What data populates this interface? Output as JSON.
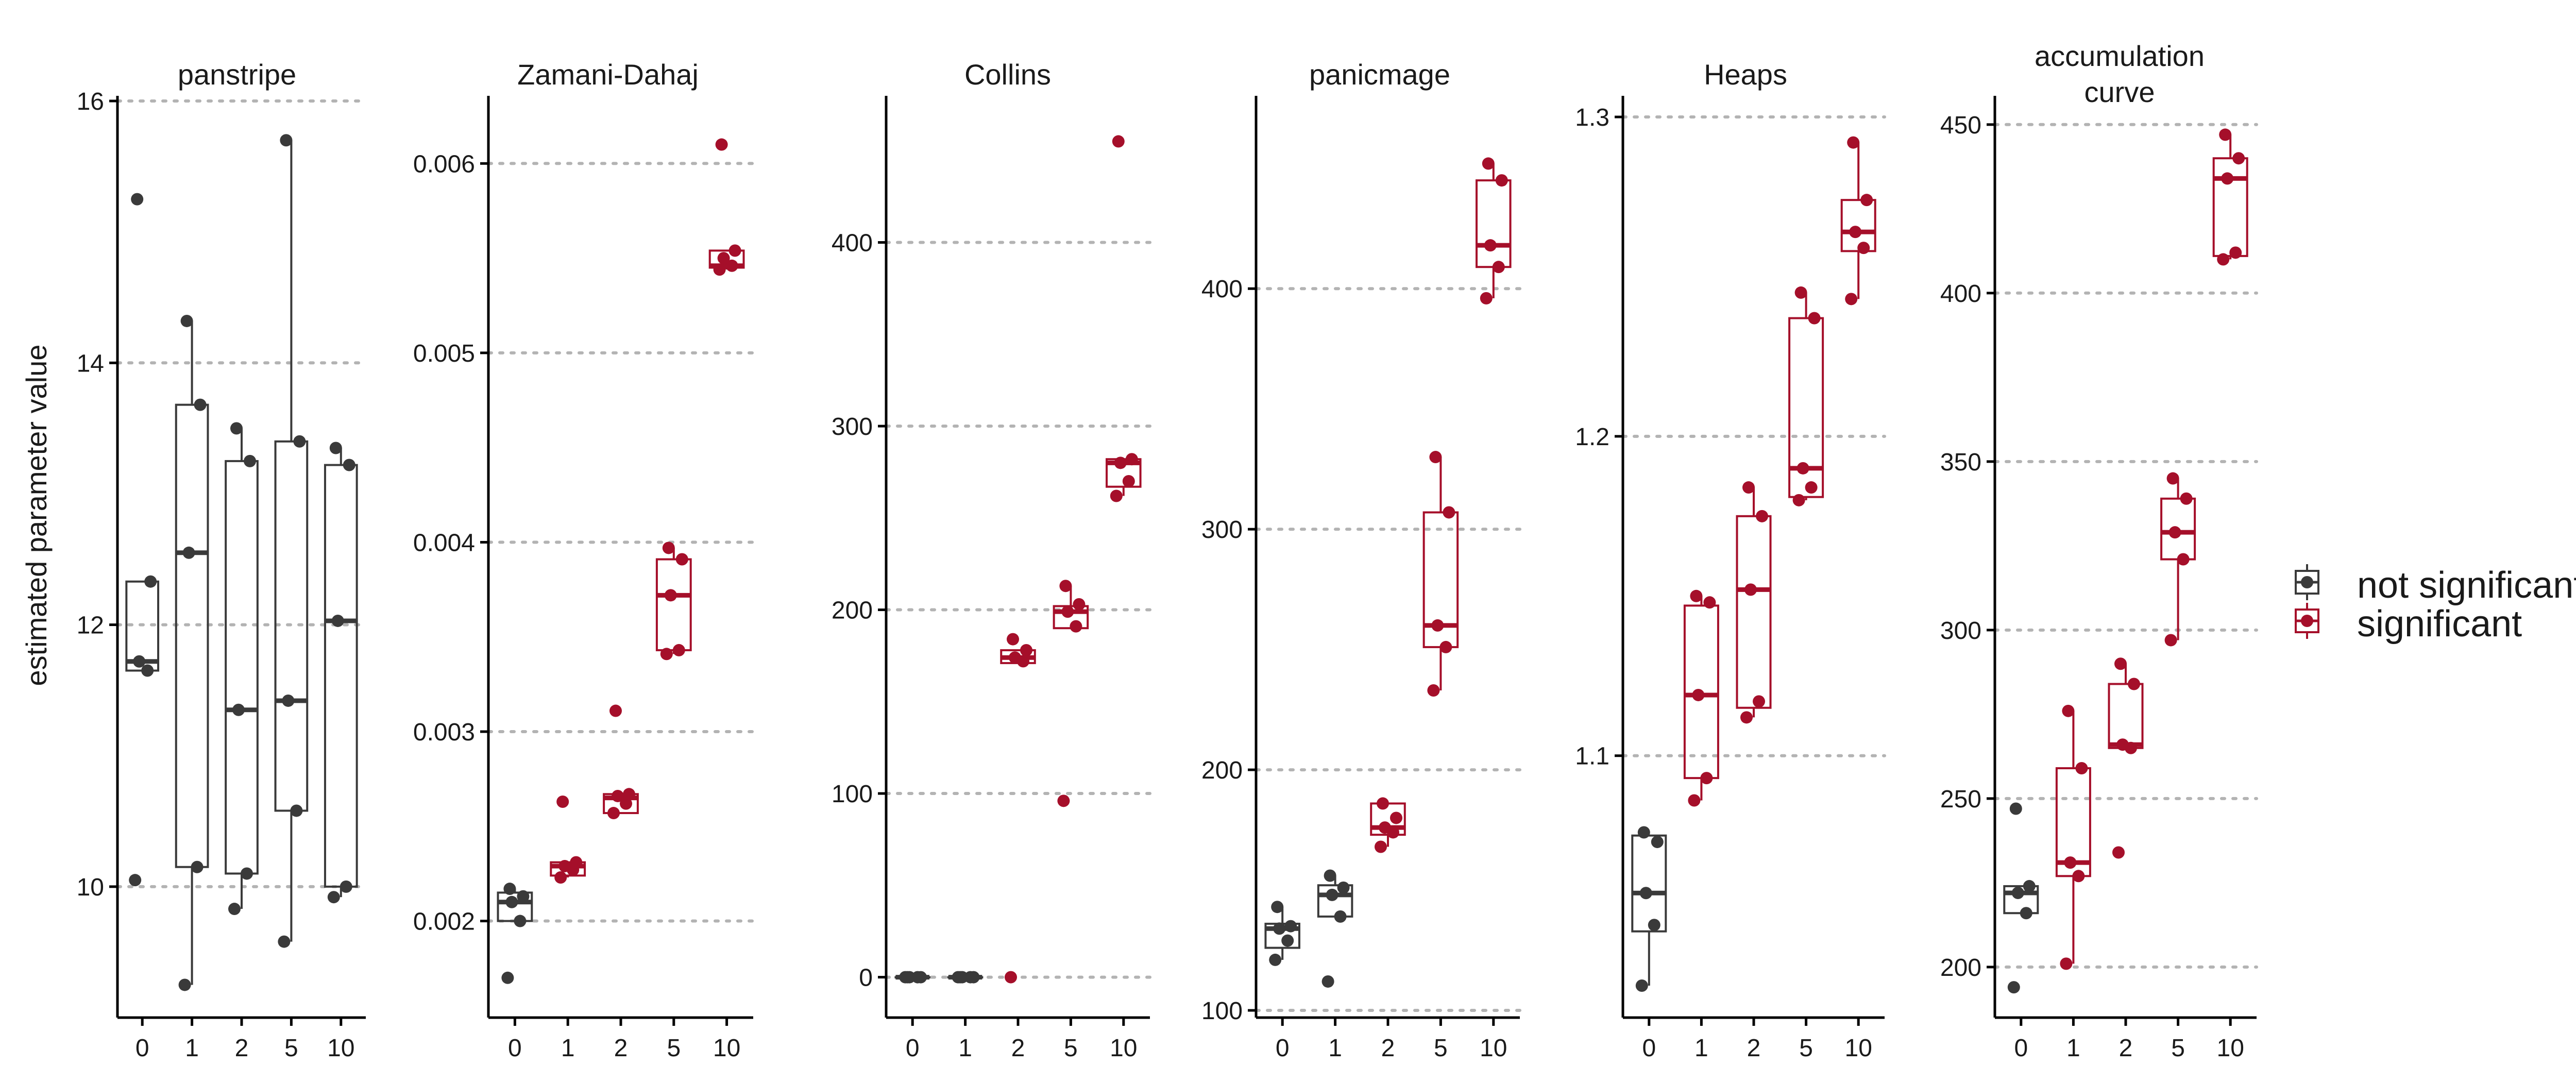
{
  "ylabel": "estimated parameter value",
  "legend": {
    "items": [
      {
        "label": "not significant",
        "color": "#3a3a3a"
      },
      {
        "label": "significant",
        "color": "#a50f2a"
      }
    ]
  },
  "chart_data": [
    {
      "type": "box",
      "title": [
        "panstripe"
      ],
      "categories": [
        "0",
        "1",
        "2",
        "5",
        "10"
      ],
      "ylim": [
        9,
        16
      ],
      "yticks": [
        10,
        12,
        14,
        16
      ],
      "ytick_labels": [
        "10",
        "12",
        "14",
        "16"
      ],
      "groups": [
        {
          "significant": false,
          "points": [
            10.05,
            11.65,
            11.72,
            12.33,
            15.25
          ],
          "box": {
            "q1": 11.65,
            "median": 11.72,
            "q3": 12.33,
            "whisker_low": 11.65,
            "whisker_high": 12.33
          }
        },
        {
          "significant": false,
          "points": [
            9.25,
            10.15,
            12.55,
            13.68,
            14.32
          ],
          "box": {
            "q1": 10.15,
            "median": 12.55,
            "q3": 13.68,
            "whisker_low": 9.25,
            "whisker_high": 14.32
          }
        },
        {
          "significant": false,
          "points": [
            9.83,
            10.1,
            11.35,
            13.25,
            13.5
          ],
          "box": {
            "q1": 10.1,
            "median": 11.35,
            "q3": 13.25,
            "whisker_low": 9.83,
            "whisker_high": 13.5
          }
        },
        {
          "significant": false,
          "points": [
            9.58,
            10.58,
            11.42,
            13.4,
            15.7
          ],
          "box": {
            "q1": 10.58,
            "median": 11.42,
            "q3": 13.4,
            "whisker_low": 9.58,
            "whisker_high": 15.7
          }
        },
        {
          "significant": false,
          "points": [
            9.92,
            10.0,
            12.03,
            13.22,
            13.35
          ],
          "box": {
            "q1": 10.0,
            "median": 12.03,
            "q3": 13.22,
            "whisker_low": 9.92,
            "whisker_high": 13.35
          }
        }
      ]
    },
    {
      "type": "box",
      "title": [
        "Zamani-Dahaj"
      ],
      "categories": [
        "0",
        "1",
        "2",
        "5",
        "10"
      ],
      "ylim": [
        0.00149,
        0.00633
      ],
      "yticks": [
        0.002,
        0.003,
        0.004,
        0.005,
        0.006
      ],
      "ytick_labels": [
        "0.002",
        "0.003",
        "0.004",
        "0.005",
        "0.006"
      ],
      "groups": [
        {
          "significant": false,
          "points": [
            0.0017,
            0.002,
            0.0021,
            0.00213,
            0.00217
          ],
          "box": {
            "q1": 0.002,
            "median": 0.0021,
            "q3": 0.00215,
            "whisker_low": 0.002,
            "whisker_high": 0.00217
          }
        },
        {
          "significant": true,
          "points": [
            0.00223,
            0.00227,
            0.00229,
            0.00231,
            0.00263
          ],
          "box": {
            "q1": 0.00224,
            "median": 0.00229,
            "q3": 0.00231,
            "whisker_low": 0.00223,
            "whisker_high": 0.00231
          }
        },
        {
          "significant": true,
          "points": [
            0.00257,
            0.00262,
            0.00266,
            0.00267,
            0.00311
          ],
          "box": {
            "q1": 0.00257,
            "median": 0.00265,
            "q3": 0.00267,
            "whisker_low": 0.00257,
            "whisker_high": 0.00267
          }
        },
        {
          "significant": true,
          "points": [
            0.00341,
            0.00343,
            0.00372,
            0.00391,
            0.00397
          ],
          "box": {
            "q1": 0.00343,
            "median": 0.00372,
            "q3": 0.00391,
            "whisker_low": 0.00341,
            "whisker_high": 0.00397
          }
        },
        {
          "significant": true,
          "points": [
            0.00544,
            0.00546,
            0.0055,
            0.00554,
            0.0061
          ],
          "box": {
            "q1": 0.00545,
            "median": 0.00546,
            "q3": 0.00554,
            "whisker_low": 0.00544,
            "whisker_high": 0.00554
          }
        }
      ]
    },
    {
      "type": "box",
      "title": [
        "Collins"
      ],
      "categories": [
        "0",
        "1",
        "2",
        "5",
        "10"
      ],
      "ylim": [
        -22,
        477
      ],
      "yticks": [
        0,
        100,
        200,
        300,
        400
      ],
      "ytick_labels": [
        "0",
        "100",
        "200",
        "300",
        "400"
      ],
      "groups": [
        {
          "significant": false,
          "points": [
            0,
            0,
            0,
            0,
            0
          ],
          "box": {
            "q1": 0,
            "median": 0,
            "q3": 0,
            "whisker_low": 0,
            "whisker_high": 0
          }
        },
        {
          "significant": false,
          "points": [
            0,
            0,
            0,
            0,
            0
          ],
          "box": {
            "q1": 0,
            "median": 0,
            "q3": 0,
            "whisker_low": 0,
            "whisker_high": 0
          }
        },
        {
          "significant": true,
          "points": [
            0,
            172,
            174,
            178,
            184
          ],
          "box": {
            "q1": 171,
            "median": 174,
            "q3": 178,
            "whisker_low": 171,
            "whisker_high": 178
          }
        },
        {
          "significant": true,
          "points": [
            96,
            191,
            199,
            203,
            213
          ],
          "box": {
            "q1": 190,
            "median": 199,
            "q3": 202,
            "whisker_low": 190,
            "whisker_high": 213
          }
        },
        {
          "significant": true,
          "points": [
            262,
            270,
            280,
            282,
            455
          ],
          "box": {
            "q1": 267,
            "median": 280,
            "q3": 282,
            "whisker_low": 262,
            "whisker_high": 282
          }
        }
      ]
    },
    {
      "type": "box",
      "title": [
        "panicmage"
      ],
      "categories": [
        "0",
        "1",
        "2",
        "5",
        "10"
      ],
      "ylim": [
        97,
        478
      ],
      "yticks": [
        100,
        200,
        300,
        400
      ],
      "ytick_labels": [
        "100",
        "200",
        "300",
        "400"
      ],
      "groups": [
        {
          "significant": false,
          "points": [
            121,
            129,
            134,
            135,
            143
          ],
          "box": {
            "q1": 126,
            "median": 134,
            "q3": 136,
            "whisker_low": 121,
            "whisker_high": 143
          }
        },
        {
          "significant": false,
          "points": [
            112,
            139,
            148,
            151,
            156
          ],
          "box": {
            "q1": 139,
            "median": 148,
            "q3": 152,
            "whisker_low": 139,
            "whisker_high": 156
          }
        },
        {
          "significant": true,
          "points": [
            168,
            174,
            176,
            180,
            186
          ],
          "box": {
            "q1": 173,
            "median": 176,
            "q3": 186,
            "whisker_low": 168,
            "whisker_high": 186
          }
        },
        {
          "significant": true,
          "points": [
            233,
            251,
            260,
            307,
            330
          ],
          "box": {
            "q1": 251,
            "median": 260,
            "q3": 307,
            "whisker_low": 233,
            "whisker_high": 330
          }
        },
        {
          "significant": true,
          "points": [
            396,
            409,
            418,
            445,
            452
          ],
          "box": {
            "q1": 409,
            "median": 418,
            "q3": 445,
            "whisker_low": 396,
            "whisker_high": 452
          }
        }
      ]
    },
    {
      "type": "box",
      "title": [
        "Heaps"
      ],
      "categories": [
        "0",
        "1",
        "2",
        "5",
        "10"
      ],
      "ylim": [
        1.018,
        1.305
      ],
      "yticks": [
        1.1,
        1.2,
        1.3
      ],
      "ytick_labels": [
        "1.1",
        "1.2",
        "1.3"
      ],
      "groups": [
        {
          "significant": false,
          "points": [
            1.028,
            1.047,
            1.057,
            1.073,
            1.076
          ],
          "box": {
            "q1": 1.045,
            "median": 1.057,
            "q3": 1.075,
            "whisker_low": 1.028,
            "whisker_high": 1.075
          }
        },
        {
          "significant": true,
          "points": [
            1.086,
            1.093,
            1.119,
            1.148,
            1.15
          ],
          "box": {
            "q1": 1.093,
            "median": 1.119,
            "q3": 1.147,
            "whisker_low": 1.086,
            "whisker_high": 1.15
          }
        },
        {
          "significant": true,
          "points": [
            1.112,
            1.117,
            1.152,
            1.175,
            1.184
          ],
          "box": {
            "q1": 1.115,
            "median": 1.152,
            "q3": 1.175,
            "whisker_low": 1.112,
            "whisker_high": 1.184
          }
        },
        {
          "significant": true,
          "points": [
            1.18,
            1.184,
            1.19,
            1.237,
            1.245
          ],
          "box": {
            "q1": 1.181,
            "median": 1.19,
            "q3": 1.237,
            "whisker_low": 1.18,
            "whisker_high": 1.245
          }
        },
        {
          "significant": true,
          "points": [
            1.243,
            1.259,
            1.264,
            1.274,
            1.292
          ],
          "box": {
            "q1": 1.258,
            "median": 1.264,
            "q3": 1.274,
            "whisker_low": 1.243,
            "whisker_high": 1.292
          }
        }
      ]
    },
    {
      "type": "box",
      "title": [
        "accumulation",
        "curve"
      ],
      "categories": [
        "0",
        "1",
        "2",
        "5",
        "10"
      ],
      "ylim": [
        185,
        457
      ],
      "yticks": [
        200,
        250,
        300,
        350,
        400,
        450
      ],
      "ytick_labels": [
        "200",
        "250",
        "300",
        "350",
        "400",
        "450"
      ],
      "groups": [
        {
          "significant": false,
          "points": [
            194,
            216,
            222,
            224,
            247
          ],
          "box": {
            "q1": 216,
            "median": 222,
            "q3": 224,
            "whisker_low": 216,
            "whisker_high": 224
          }
        },
        {
          "significant": true,
          "points": [
            201,
            227,
            231,
            259,
            276
          ],
          "box": {
            "q1": 227,
            "median": 231,
            "q3": 259,
            "whisker_low": 201,
            "whisker_high": 276
          }
        },
        {
          "significant": true,
          "points": [
            234,
            265,
            266,
            284,
            290
          ],
          "box": {
            "q1": 265,
            "median": 266,
            "q3": 284,
            "whisker_low": 265,
            "whisker_high": 290
          }
        },
        {
          "significant": true,
          "points": [
            297,
            321,
            329,
            339,
            345
          ],
          "box": {
            "q1": 321,
            "median": 329,
            "q3": 339,
            "whisker_low": 297,
            "whisker_high": 345
          }
        },
        {
          "significant": true,
          "points": [
            410,
            412,
            434,
            440,
            447
          ],
          "box": {
            "q1": 411,
            "median": 434,
            "q3": 440,
            "whisker_low": 410,
            "whisker_high": 447
          }
        }
      ]
    }
  ]
}
